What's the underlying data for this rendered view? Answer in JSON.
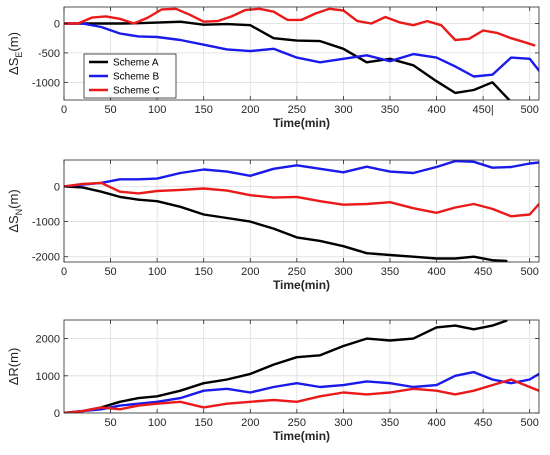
{
  "colors": {
    "Scheme A": "#000000",
    "Scheme B": "#1a1aeb",
    "Scheme C": "#eb1a1a"
  },
  "legend": {
    "entries": [
      "Scheme A",
      "Scheme B",
      "Scheme C"
    ],
    "location": "inside, upper-left of top panel"
  },
  "chart_data": [
    {
      "type": "line",
      "ylabel": {
        "main": "ΔS",
        "sub": "E",
        "unit": "(m)"
      },
      "xlabel": "Time(min)",
      "xlim": [
        0,
        510
      ],
      "ylim": [
        -1300,
        280
      ],
      "xticks": [
        0,
        50,
        100,
        150,
        200,
        250,
        300,
        350,
        400,
        450,
        500
      ],
      "xtick_labels": [
        "0",
        "50",
        "100",
        "150",
        "200",
        "250",
        "300",
        "350",
        "400",
        "450|",
        "500"
      ],
      "yticks": [
        -1000,
        -500,
        0
      ],
      "grid": true,
      "series": [
        {
          "name": "Scheme A",
          "x": [
            0,
            20,
            40,
            60,
            80,
            100,
            125,
            150,
            175,
            200,
            225,
            250,
            275,
            300,
            325,
            350,
            375,
            400,
            420,
            440,
            460,
            478
          ],
          "y": [
            0,
            0,
            0,
            0,
            5,
            15,
            30,
            -20,
            -10,
            -30,
            -250,
            -290,
            -300,
            -430,
            -660,
            -600,
            -710,
            -980,
            -1180,
            -1130,
            -1000,
            -1300
          ]
        },
        {
          "name": "Scheme B",
          "x": [
            0,
            20,
            40,
            60,
            80,
            100,
            125,
            150,
            175,
            200,
            225,
            250,
            275,
            300,
            325,
            350,
            375,
            400,
            420,
            440,
            460,
            480,
            500,
            510
          ],
          "y": [
            0,
            0,
            -60,
            -170,
            -220,
            -230,
            -280,
            -360,
            -440,
            -470,
            -430,
            -580,
            -660,
            -600,
            -540,
            -640,
            -520,
            -580,
            -730,
            -900,
            -870,
            -580,
            -600,
            -800
          ]
        },
        {
          "name": "Scheme C",
          "x": [
            0,
            15,
            30,
            45,
            60,
            75,
            90,
            105,
            120,
            135,
            150,
            165,
            180,
            195,
            210,
            225,
            240,
            255,
            270,
            285,
            300,
            315,
            330,
            345,
            360,
            375,
            390,
            405,
            420,
            435,
            450,
            465,
            480,
            495,
            505
          ],
          "y": [
            0,
            0,
            100,
            120,
            80,
            0,
            100,
            240,
            250,
            150,
            30,
            40,
            120,
            230,
            250,
            200,
            60,
            60,
            170,
            250,
            220,
            40,
            0,
            110,
            20,
            -30,
            40,
            -30,
            -280,
            -260,
            -120,
            -160,
            -250,
            -320,
            -370
          ]
        }
      ]
    },
    {
      "type": "line",
      "ylabel": {
        "main": "ΔS",
        "sub": "N",
        "unit": "(m)"
      },
      "xlabel": "Time(min)",
      "xlim": [
        0,
        510
      ],
      "ylim": [
        -2150,
        750
      ],
      "xticks": [
        0,
        50,
        100,
        150,
        200,
        250,
        300,
        350,
        400,
        450,
        500
      ],
      "xtick_labels": [
        "0",
        "50",
        "100",
        "150",
        "200",
        "250",
        "300",
        "350",
        "400",
        "450",
        "500"
      ],
      "yticks": [
        -2000,
        -1000,
        0
      ],
      "grid": true,
      "series": [
        {
          "name": "Scheme A",
          "x": [
            0,
            20,
            40,
            60,
            80,
            100,
            125,
            150,
            175,
            200,
            225,
            250,
            275,
            300,
            325,
            350,
            375,
            400,
            420,
            440,
            460,
            475
          ],
          "y": [
            0,
            -30,
            -150,
            -300,
            -380,
            -420,
            -580,
            -800,
            -900,
            -1000,
            -1200,
            -1450,
            -1550,
            -1700,
            -1900,
            -1950,
            -2000,
            -2050,
            -2050,
            -2000,
            -2100,
            -2120
          ]
        },
        {
          "name": "Scheme B",
          "x": [
            0,
            20,
            40,
            60,
            80,
            100,
            125,
            150,
            175,
            200,
            225,
            250,
            275,
            300,
            325,
            350,
            375,
            400,
            420,
            440,
            460,
            480,
            500,
            510
          ],
          "y": [
            0,
            50,
            100,
            200,
            200,
            220,
            380,
            480,
            420,
            300,
            500,
            600,
            500,
            400,
            560,
            420,
            380,
            550,
            720,
            700,
            530,
            550,
            650,
            680
          ]
        },
        {
          "name": "Scheme C",
          "x": [
            0,
            20,
            40,
            60,
            80,
            100,
            125,
            150,
            175,
            200,
            225,
            250,
            275,
            300,
            325,
            350,
            375,
            400,
            420,
            440,
            460,
            480,
            500,
            510
          ],
          "y": [
            0,
            70,
            100,
            -150,
            -200,
            -130,
            -100,
            -60,
            -120,
            -250,
            -320,
            -300,
            -420,
            -520,
            -500,
            -450,
            -620,
            -750,
            -600,
            -500,
            -640,
            -850,
            -800,
            -500
          ]
        }
      ]
    },
    {
      "type": "line",
      "ylabel": {
        "main": "ΔR",
        "sub": "",
        "unit": "(m)"
      },
      "xlabel": "Time(min)",
      "xlim": [
        0,
        510
      ],
      "ylim": [
        0,
        2500
      ],
      "xticks": [
        50,
        100,
        150,
        200,
        250,
        300,
        350,
        400,
        450,
        500
      ],
      "xtick_labels": [
        "50",
        "100",
        "150",
        "200",
        "250",
        "300",
        "350",
        "400",
        "450",
        "500"
      ],
      "yticks": [
        0,
        1000,
        2000
      ],
      "grid": true,
      "series": [
        {
          "name": "Scheme A",
          "x": [
            0,
            20,
            40,
            60,
            80,
            100,
            125,
            150,
            175,
            200,
            225,
            250,
            275,
            300,
            325,
            350,
            375,
            400,
            420,
            440,
            460,
            475
          ],
          "y": [
            0,
            50,
            150,
            300,
            400,
            450,
            600,
            800,
            900,
            1050,
            1300,
            1500,
            1550,
            1800,
            2000,
            1950,
            2000,
            2300,
            2350,
            2250,
            2350,
            2480
          ]
        },
        {
          "name": "Scheme B",
          "x": [
            0,
            20,
            40,
            60,
            80,
            100,
            125,
            150,
            175,
            200,
            225,
            250,
            275,
            300,
            325,
            350,
            375,
            400,
            420,
            440,
            460,
            480,
            500,
            510
          ],
          "y": [
            0,
            50,
            100,
            200,
            250,
            300,
            400,
            600,
            650,
            550,
            700,
            800,
            700,
            750,
            850,
            800,
            700,
            750,
            1000,
            1100,
            900,
            800,
            900,
            1050
          ]
        },
        {
          "name": "Scheme C",
          "x": [
            0,
            20,
            40,
            60,
            80,
            100,
            125,
            150,
            175,
            200,
            225,
            250,
            275,
            300,
            325,
            350,
            375,
            400,
            420,
            440,
            460,
            480,
            500,
            510
          ],
          "y": [
            0,
            50,
            150,
            100,
            200,
            250,
            300,
            150,
            250,
            300,
            350,
            300,
            450,
            550,
            500,
            550,
            650,
            600,
            500,
            600,
            750,
            900,
            700,
            600
          ]
        }
      ]
    }
  ]
}
